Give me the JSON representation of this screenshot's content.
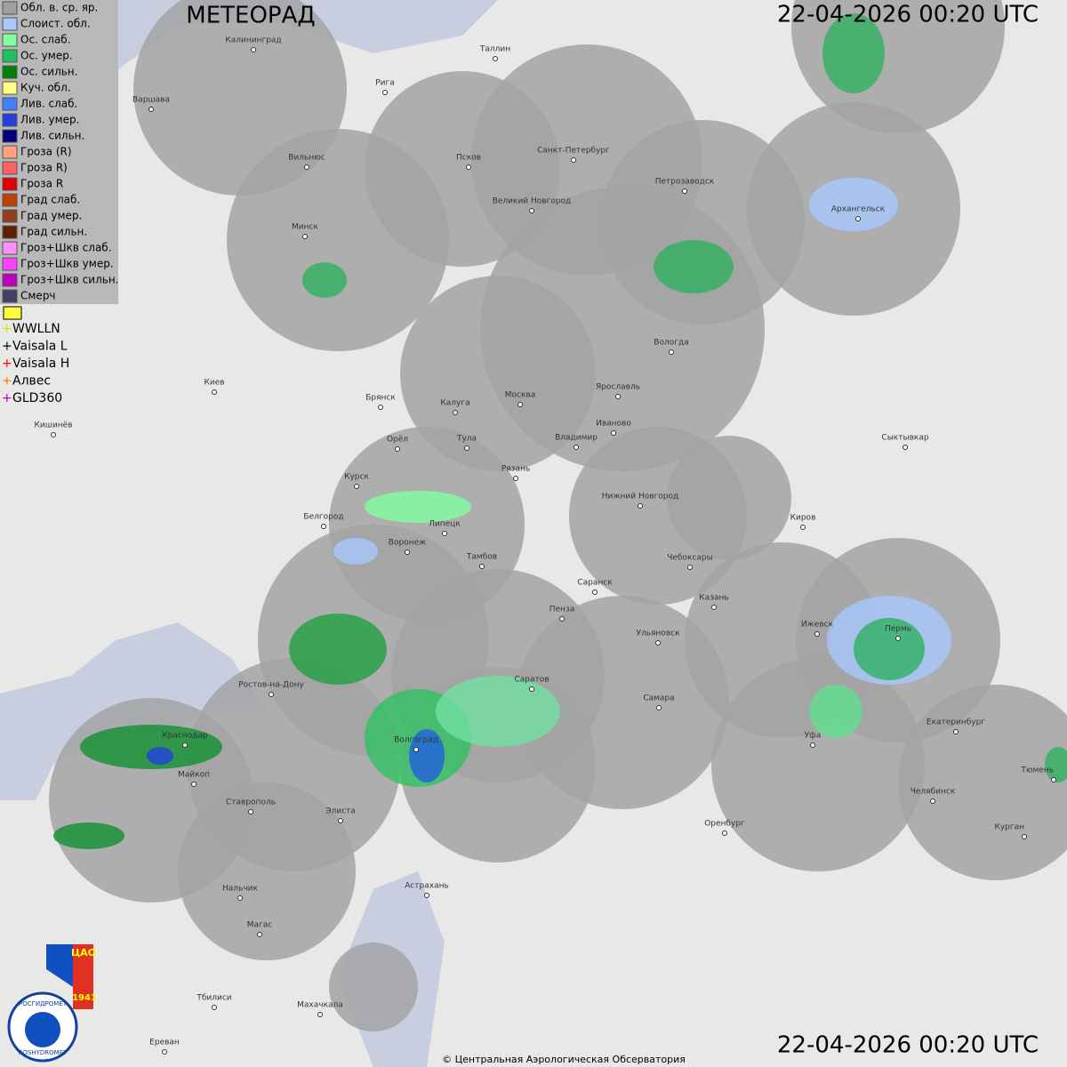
{
  "header": {
    "title": "МЕТЕОРАД",
    "timestamp_top": "22-04-2026  00:20 UTC",
    "timestamp_bottom": "22-04-2026  00:20 UTC"
  },
  "legend": {
    "items": [
      {
        "label": "Обл. в. ср. яр.",
        "color": "#a0a0a0"
      },
      {
        "label": "Слоист. обл.",
        "color": "#a8c8ff"
      },
      {
        "label": "Ос. слаб.",
        "color": "#80ffa0"
      },
      {
        "label": "Ос. умер.",
        "color": "#20c060"
      },
      {
        "label": "Ос. сильн.",
        "color": "#008000"
      },
      {
        "label": "Куч. обл.",
        "color": "#ffff80"
      },
      {
        "label": "Лив. слаб.",
        "color": "#4080ff"
      },
      {
        "label": "Лив. умер.",
        "color": "#2040e0"
      },
      {
        "label": "Лив. сильн.",
        "color": "#000080"
      },
      {
        "label": "Гроза (R)",
        "color": "#ffa080"
      },
      {
        "label": "Гроза R)",
        "color": "#ff6060"
      },
      {
        "label": "Гроза R",
        "color": "#e00000"
      },
      {
        "label": "Град слаб.",
        "color": "#c04000"
      },
      {
        "label": "Град умер.",
        "color": "#904020"
      },
      {
        "label": "Град сильн.",
        "color": "#602000"
      },
      {
        "label": "Гроз+Шкв слаб.",
        "color": "#ff90ff"
      },
      {
        "label": "Гроз+Шкв умер.",
        "color": "#ff40ff"
      },
      {
        "label": "Гроз+Шкв сильн.",
        "color": "#c000c0"
      },
      {
        "label": "Смерч",
        "color": "#404060"
      }
    ]
  },
  "lightning": {
    "items": [
      {
        "label": "WWLLN",
        "color": "#e0e000"
      },
      {
        "label": "Vaisala L",
        "color": "#000000"
      },
      {
        "label": "Vaisala H",
        "color": "#ff0000"
      },
      {
        "label": "Алвес",
        "color": "#ff8000"
      },
      {
        "label": "GLD360",
        "color": "#c000c0"
      }
    ]
  },
  "map": {
    "cities": [
      "Калининград",
      "Таллин",
      "Рига",
      "Варшава",
      "Вильнюс",
      "Псков",
      "Санкт-Петербург",
      "Петрозаводск",
      "Архангельск",
      "Великий Новгород",
      "Минск",
      "Вологда",
      "Киев",
      "Брянск",
      "Калуга",
      "Москва",
      "Ярославль",
      "Иваново",
      "Кишинёв",
      "Орёл",
      "Тула",
      "Владимир",
      "Сыктывкар",
      "Курск",
      "Рязань",
      "Нижний Новгород",
      "Белгород",
      "Липецк",
      "Киров",
      "Воронеж",
      "Тамбов",
      "Чебоксары",
      "Саранск",
      "Пенза",
      "Казань",
      "Ижевск",
      "Пермь",
      "Ульяновск",
      "Ростов-на-Дону",
      "Саратов",
      "Самара",
      "Екатеринбург",
      "Краснодар",
      "Уфа",
      "Волгоград",
      "Тюмень",
      "Майкоп",
      "Челябинск",
      "Ставрополь",
      "Элиста",
      "Оренбург",
      "Курган",
      "Нальчик",
      "Астрахань",
      "Магас",
      "Тбилиси",
      "Махачкала",
      "Ереван"
    ]
  },
  "logo": {
    "org": "ЦАО",
    "year": "1941",
    "ring": "РОСГИДРОМЕТ",
    "ring_en": "ROSHYDROMET"
  },
  "footer": {
    "copyright": "© Центральная Аэрологическая Обсерватория"
  }
}
